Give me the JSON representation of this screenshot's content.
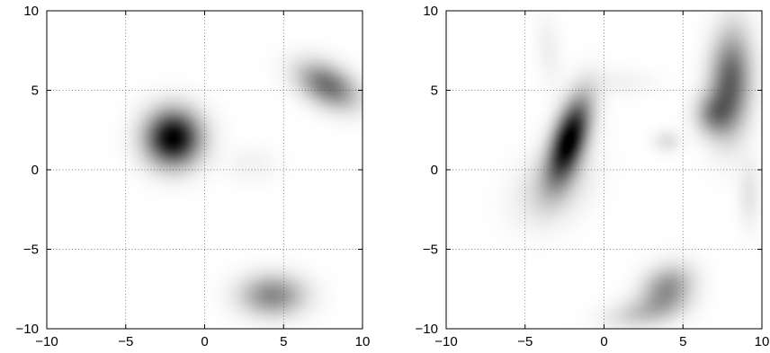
{
  "chart_data": [
    {
      "type": "heatmap",
      "colormap": "gray-reversed",
      "xlim": [
        -10,
        10
      ],
      "ylim": [
        -10,
        10
      ],
      "xticks": [
        -10,
        -5,
        0,
        5,
        10
      ],
      "yticks": [
        -10,
        -5,
        0,
        5,
        10
      ],
      "x_tick_labels": [
        "−10",
        "−5",
        "0",
        "5",
        "10"
      ],
      "y_tick_labels": [
        "−10",
        "−5",
        "0",
        "5",
        "10"
      ],
      "grid": "dotted",
      "peaks": [
        {
          "x": -2,
          "y": 2,
          "sx": 1.2,
          "sy": 1.2,
          "rho": 0,
          "amp": 1.0
        },
        {
          "x": 7.8,
          "y": 5.3,
          "sx": 1.3,
          "sy": 1.0,
          "rho": -0.4,
          "amp": 0.55
        },
        {
          "x": 4.3,
          "y": -7.9,
          "sx": 1.4,
          "sy": 0.9,
          "rho": 0,
          "amp": 0.45
        },
        {
          "x": 3,
          "y": 0.3,
          "sx": 1.2,
          "sy": 0.8,
          "rho": 0,
          "amp": 0.05
        }
      ]
    },
    {
      "type": "heatmap",
      "colormap": "gray-reversed",
      "xlim": [
        -10,
        10
      ],
      "ylim": [
        -10,
        10
      ],
      "xticks": [
        -10,
        -5,
        0,
        5,
        10
      ],
      "yticks": [
        -10,
        -5,
        0,
        5,
        10
      ],
      "x_tick_labels": [
        "−10",
        "−5",
        "0",
        "5",
        "10"
      ],
      "y_tick_labels": [
        "−10",
        "−5",
        "0",
        "5",
        "10"
      ],
      "grid": "dotted",
      "peaks": [
        {
          "x": -2.2,
          "y": 1.9,
          "sx": 0.9,
          "sy": 1.8,
          "rho": 0.55,
          "amp": 1.0
        },
        {
          "x": -3.2,
          "y": -1.0,
          "sx": 1.6,
          "sy": 1.6,
          "rho": 0.3,
          "amp": 0.18
        },
        {
          "x": 8.0,
          "y": 5.5,
          "sx": 0.9,
          "sy": 2.2,
          "rho": 0.1,
          "amp": 0.62
        },
        {
          "x": 6.9,
          "y": 3.5,
          "sx": 0.8,
          "sy": 0.9,
          "rho": 0,
          "amp": 0.35
        },
        {
          "x": 4.0,
          "y": -7.5,
          "sx": 1.1,
          "sy": 1.0,
          "rho": 0.2,
          "amp": 0.42
        },
        {
          "x": 2.5,
          "y": -9.0,
          "sx": 1.6,
          "sy": 0.7,
          "rho": 0.3,
          "amp": 0.2
        },
        {
          "x": 4.0,
          "y": 1.8,
          "sx": 0.6,
          "sy": 0.5,
          "rho": 0,
          "amp": 0.12
        },
        {
          "x": 9.2,
          "y": -1.5,
          "sx": 0.5,
          "sy": 1.5,
          "rho": 0,
          "amp": 0.1
        },
        {
          "x": -3.5,
          "y": 7.5,
          "sx": 0.6,
          "sy": 1.6,
          "rho": -0.3,
          "amp": 0.06
        },
        {
          "x": 1.2,
          "y": 5.5,
          "sx": 1.5,
          "sy": 0.6,
          "rho": 0,
          "amp": 0.05
        }
      ]
    }
  ]
}
